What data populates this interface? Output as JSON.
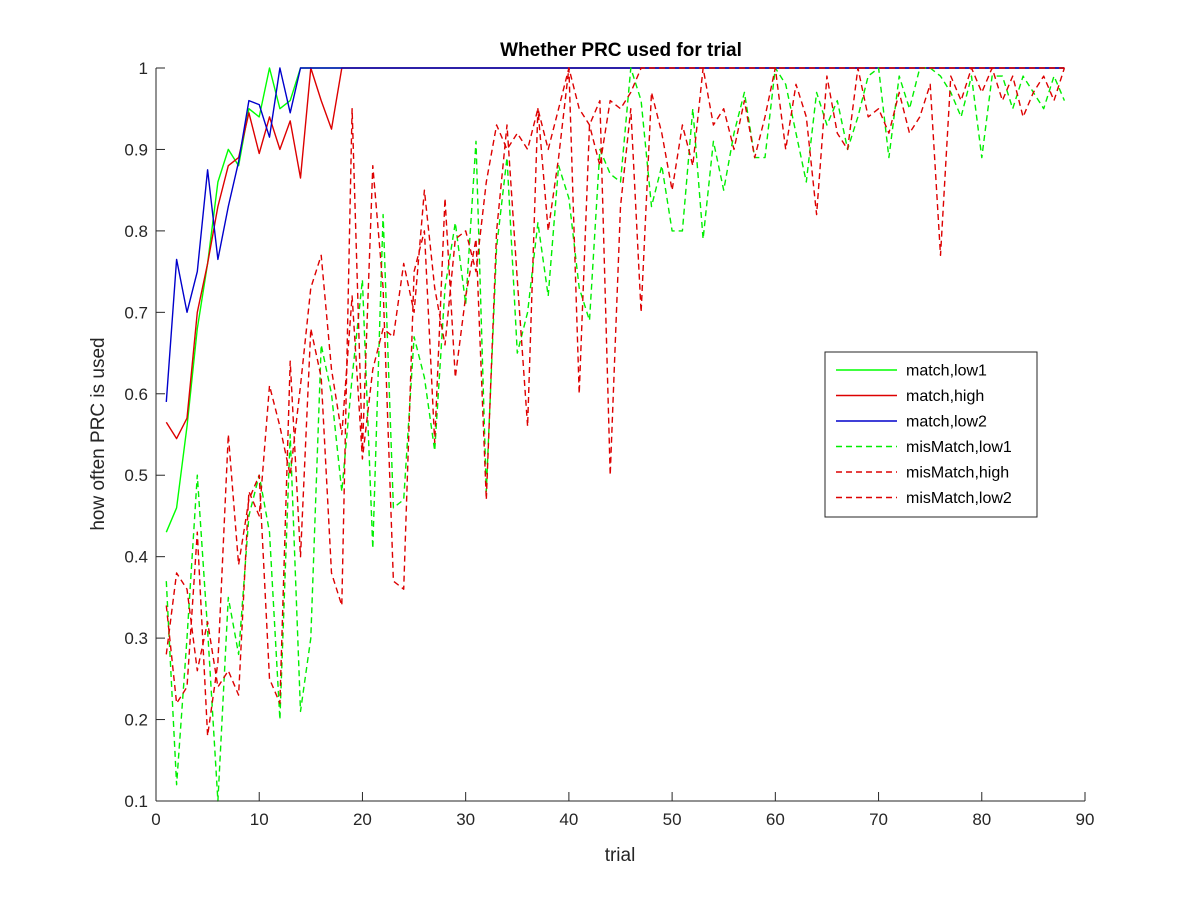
{
  "chart_data": {
    "type": "line",
    "title": "Whether PRC used for trial",
    "xlabel": "trial",
    "ylabel": "how often PRC is used",
    "xlim": [
      0,
      90
    ],
    "ylim": [
      0.1,
      1
    ],
    "xticks": [
      "0",
      "10",
      "20",
      "30",
      "40",
      "50",
      "60",
      "70",
      "80",
      "90"
    ],
    "yticks": [
      "0.1",
      "0.2",
      "0.3",
      "0.4",
      "0.5",
      "0.6",
      "0.7",
      "0.8",
      "0.9",
      "1"
    ],
    "grid": false,
    "legend_position": "right",
    "series": [
      {
        "name": "match,low1",
        "color": "#00ff00",
        "dash": "solid",
        "x": [
          1,
          2,
          3,
          4,
          5,
          6,
          7,
          8,
          9,
          10,
          11,
          12,
          13,
          14,
          88
        ],
        "y": [
          0.43,
          0.46,
          0.56,
          0.68,
          0.76,
          0.86,
          0.9,
          0.88,
          0.95,
          0.94,
          1.0,
          0.95,
          0.96,
          1.0,
          1.0
        ]
      },
      {
        "name": "match,high",
        "color": "#dd0000",
        "dash": "solid",
        "x": [
          1,
          2,
          3,
          4,
          5,
          6,
          7,
          8,
          9,
          10,
          11,
          12,
          13,
          14,
          15,
          16,
          17,
          18,
          88
        ],
        "y": [
          0.565,
          0.545,
          0.57,
          0.7,
          0.76,
          0.83,
          0.88,
          0.89,
          0.945,
          0.895,
          0.94,
          0.9,
          0.935,
          0.865,
          1.0,
          0.96,
          0.925,
          1.0,
          1.0
        ]
      },
      {
        "name": "match,low2",
        "color": "#0000cc",
        "dash": "solid",
        "x": [
          1,
          2,
          3,
          4,
          5,
          6,
          7,
          8,
          9,
          10,
          11,
          12,
          13,
          14,
          88
        ],
        "y": [
          0.59,
          0.765,
          0.7,
          0.75,
          0.875,
          0.765,
          0.83,
          0.885,
          0.96,
          0.955,
          0.915,
          1.0,
          0.945,
          1.0,
          1.0
        ]
      },
      {
        "name": "misMatch,low1",
        "color": "#00ee00",
        "dash": "dashed",
        "x": [
          1,
          2,
          3,
          4,
          5,
          6,
          7,
          8,
          9,
          10,
          11,
          12,
          13,
          14,
          15,
          16,
          17,
          18,
          19,
          20,
          21,
          22,
          23,
          24,
          25,
          26,
          27,
          28,
          29,
          30,
          31,
          32,
          33,
          34,
          35,
          36,
          37,
          38,
          39,
          40,
          41,
          42,
          43,
          44,
          45,
          46,
          47,
          48,
          49,
          50,
          51,
          52,
          53,
          54,
          55,
          56,
          57,
          58,
          59,
          60,
          61,
          62,
          63,
          64,
          65,
          66,
          67,
          68,
          69,
          70,
          71,
          72,
          73,
          74,
          75,
          76,
          77,
          78,
          79,
          80,
          81,
          82,
          83,
          84,
          85,
          86,
          87,
          88
        ],
        "y": [
          0.37,
          0.12,
          0.3,
          0.5,
          0.31,
          0.1,
          0.35,
          0.28,
          0.45,
          0.5,
          0.43,
          0.2,
          0.55,
          0.21,
          0.3,
          0.66,
          0.6,
          0.48,
          0.62,
          0.74,
          0.41,
          0.82,
          0.46,
          0.47,
          0.67,
          0.62,
          0.53,
          0.73,
          0.81,
          0.71,
          0.91,
          0.48,
          0.78,
          0.89,
          0.65,
          0.7,
          0.81,
          0.72,
          0.88,
          0.84,
          0.73,
          0.69,
          0.9,
          0.87,
          0.86,
          1.0,
          0.96,
          0.83,
          0.88,
          0.8,
          0.8,
          0.95,
          0.79,
          0.91,
          0.85,
          0.92,
          0.97,
          0.89,
          0.89,
          1.0,
          0.98,
          0.92,
          0.86,
          0.97,
          0.93,
          0.96,
          0.9,
          0.94,
          0.99,
          1.0,
          0.89,
          0.99,
          0.95,
          1.0,
          1.0,
          0.99,
          0.97,
          0.94,
          0.99,
          0.89,
          0.99,
          0.99,
          0.95,
          0.99,
          0.97,
          0.95,
          0.99,
          0.96
        ]
      },
      {
        "name": "misMatch,high",
        "color": "#dd0000",
        "dash": "dashed",
        "x": [
          1,
          2,
          3,
          4,
          5,
          6,
          7,
          8,
          9,
          10,
          11,
          12,
          13,
          14,
          15,
          16,
          17,
          18,
          19,
          20,
          21,
          22,
          23,
          24,
          25,
          26,
          27,
          28,
          29,
          30,
          31,
          32,
          33,
          34,
          35,
          36,
          37,
          38,
          39,
          40,
          41,
          42,
          43,
          44,
          45,
          46,
          47,
          48,
          49,
          50,
          51,
          52,
          53,
          54,
          55,
          56,
          57,
          58,
          59,
          60,
          61,
          62,
          63,
          64,
          65,
          66,
          67,
          68,
          69,
          70,
          71,
          72,
          73,
          74,
          75,
          76,
          77,
          78,
          79,
          80,
          81,
          82,
          83,
          84,
          85,
          86,
          87,
          88
        ],
        "y": [
          0.34,
          0.22,
          0.24,
          0.43,
          0.18,
          0.27,
          0.55,
          0.39,
          0.47,
          0.5,
          0.25,
          0.22,
          0.64,
          0.4,
          0.68,
          0.62,
          0.38,
          0.34,
          0.95,
          0.53,
          0.88,
          0.73,
          0.37,
          0.36,
          0.75,
          0.8,
          0.54,
          0.84,
          0.62,
          0.72,
          0.79,
          0.47,
          0.8,
          0.93,
          0.74,
          0.56,
          0.95,
          0.8,
          0.89,
          1.0,
          0.6,
          0.93,
          0.96,
          0.5,
          0.83,
          0.95,
          0.7,
          0.97,
          0.92,
          0.85,
          0.93,
          0.88,
          1.0,
          0.93,
          0.95,
          0.9,
          0.96,
          0.89,
          0.94,
          1.0,
          0.9,
          0.98,
          0.94,
          0.82,
          0.99,
          0.92,
          0.9,
          1.0,
          0.94,
          0.95,
          0.92,
          0.97,
          0.92,
          0.94,
          0.98,
          0.77,
          0.99,
          0.96,
          1.0,
          0.97,
          1.0,
          0.96,
          0.99,
          0.94,
          0.97,
          0.99,
          0.96,
          1.0
        ]
      },
      {
        "name": "misMatch,low2",
        "color": "#dd0000",
        "dash": "dashed",
        "x": [
          1,
          2,
          3,
          4,
          5,
          6,
          7,
          8,
          9,
          10,
          11,
          12,
          13,
          14,
          15,
          16,
          17,
          18,
          19,
          20,
          21,
          22,
          23,
          24,
          25,
          26,
          27,
          28,
          29,
          30,
          31,
          32,
          33,
          34,
          35,
          36,
          37,
          38,
          39,
          40,
          41,
          42,
          43,
          44,
          45,
          46,
          47,
          48,
          49,
          50,
          51,
          52,
          53,
          54,
          55,
          56,
          57,
          58,
          59,
          60,
          61,
          62,
          63,
          64,
          65,
          66,
          67,
          68,
          69,
          70,
          71,
          72,
          73,
          74,
          75,
          76,
          77,
          78,
          79,
          80,
          81,
          82,
          83,
          84,
          85,
          86,
          87,
          88
        ],
        "y": [
          0.28,
          0.38,
          0.36,
          0.26,
          0.32,
          0.24,
          0.26,
          0.23,
          0.48,
          0.45,
          0.61,
          0.56,
          0.5,
          0.61,
          0.73,
          0.77,
          0.63,
          0.55,
          0.72,
          0.52,
          0.63,
          0.68,
          0.67,
          0.76,
          0.7,
          0.85,
          0.73,
          0.66,
          0.79,
          0.8,
          0.75,
          0.86,
          0.93,
          0.9,
          0.92,
          0.9,
          0.95,
          0.9,
          0.95,
          1.0,
          0.95,
          0.93,
          0.88,
          0.96,
          0.95,
          0.97,
          1.0,
          1.0,
          1.0,
          1.0,
          1.0,
          1.0,
          1.0,
          1.0,
          1.0,
          1.0,
          1.0,
          1.0,
          1.0,
          1.0,
          1.0,
          1.0,
          1.0,
          1.0,
          1.0,
          1.0,
          1.0,
          1.0,
          1.0,
          1.0,
          1.0,
          1.0,
          1.0,
          1.0,
          1.0,
          1.0,
          1.0,
          1.0,
          1.0,
          1.0,
          1.0,
          1.0,
          1.0,
          1.0,
          1.0,
          1.0,
          1.0,
          1.0
        ]
      }
    ]
  }
}
